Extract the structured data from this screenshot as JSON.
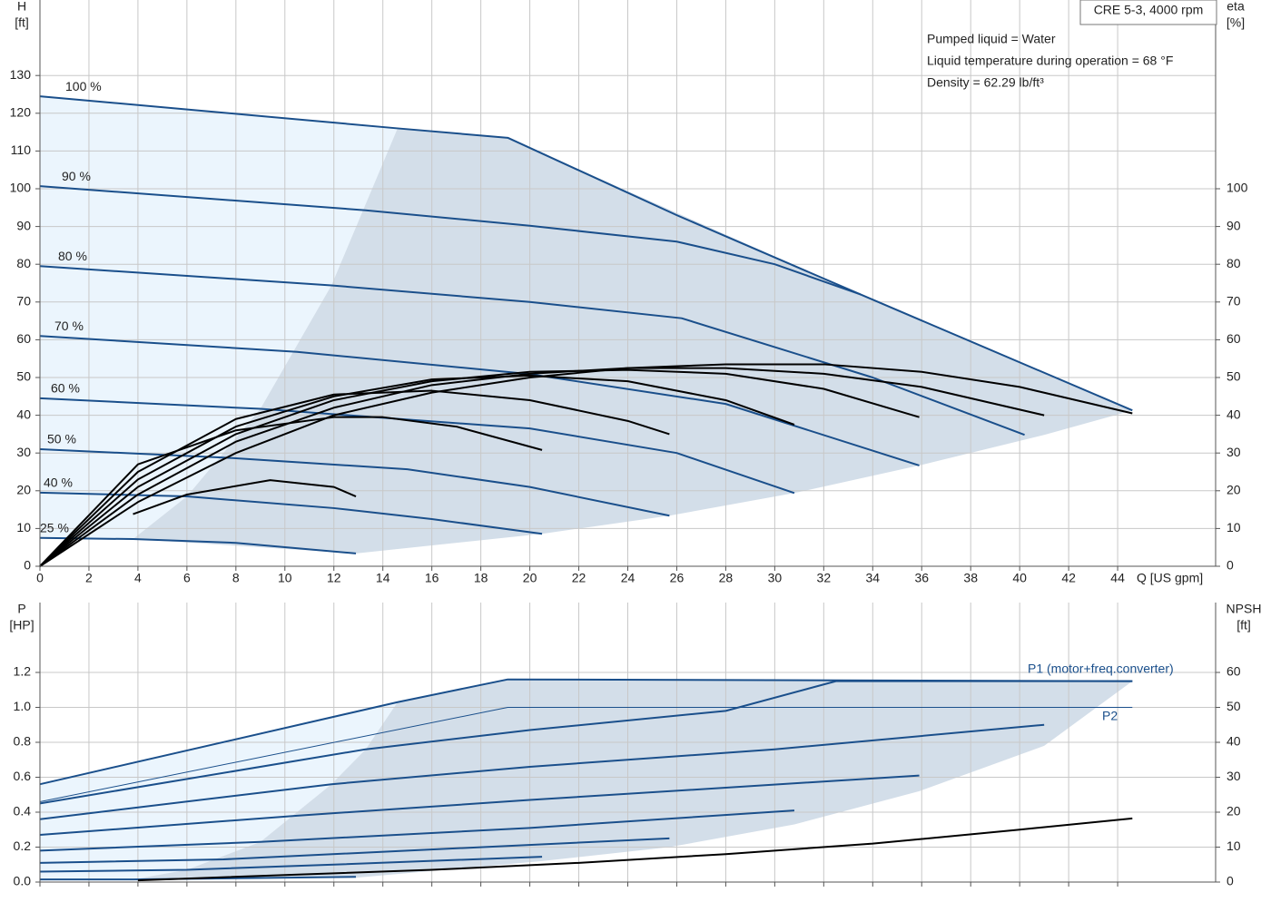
{
  "chart_data": [
    {
      "type": "line",
      "title": "CRE 5-3, 4000 rpm",
      "notes": [
        "Pumped liquid = Water",
        "Liquid temperature during operation = 68 °F",
        "Density = 62.29 lb/ft³"
      ],
      "ylabel": "H",
      "yunit": "[ft]",
      "y2label": "eta",
      "y2unit": "[%]",
      "xlabel": "Q [US gpm]",
      "xlim": [
        0,
        48
      ],
      "ylim": [
        0,
        150
      ],
      "y2lim": [
        0,
        150
      ],
      "xticks": [
        0,
        2,
        4,
        6,
        8,
        10,
        12,
        14,
        16,
        18,
        20,
        22,
        24,
        26,
        28,
        30,
        32,
        34,
        36,
        38,
        40,
        42,
        44
      ],
      "yticks": [
        0,
        10,
        20,
        30,
        40,
        50,
        60,
        70,
        80,
        90,
        100,
        110,
        120,
        130
      ],
      "y2ticks": [
        0,
        10,
        20,
        30,
        40,
        50,
        60,
        70,
        80,
        90,
        100
      ],
      "grid": true,
      "areas": [
        {
          "color": "#ebf5fd",
          "x": [
            0,
            14.6,
            11.9,
            9,
            6,
            3.8,
            0
          ],
          "values": [
            124.5,
            116,
            74.4,
            41.7,
            18.5,
            7.2,
            7.5
          ]
        },
        {
          "color": "#d3dee9",
          "x": [
            14.6,
            19.1,
            33.5,
            44.6,
            41,
            35.9,
            30.8,
            25.7,
            20.5,
            12.9,
            3.8,
            6,
            9,
            11.9
          ],
          "values": [
            116,
            113.5,
            72,
            41.3,
            34.8,
            26.7,
            19.4,
            13.4,
            8.6,
            3.4,
            7.2,
            18.5,
            41.7,
            74.4
          ]
        }
      ],
      "series": [
        {
          "name": "100 %",
          "color": "#1a4f8b",
          "width": 2,
          "x": [
            0,
            14.6,
            19.1,
            26,
            33.5,
            44.6
          ],
          "values": [
            124.5,
            116,
            113.5,
            93,
            72,
            41.3
          ]
        },
        {
          "name": "90 %",
          "color": "#1a4f8b",
          "width": 2,
          "x": [
            0,
            13.3,
            20,
            26,
            30,
            33.5
          ],
          "values": [
            100.7,
            94.3,
            90.2,
            86,
            80,
            72
          ]
        },
        {
          "name": "80 %",
          "color": "#1a4f8b",
          "width": 2,
          "x": [
            0,
            11.9,
            20,
            26.2,
            34,
            40.2
          ],
          "values": [
            79.5,
            74.4,
            70,
            65.7,
            50,
            34.8
          ]
        },
        {
          "name": "70 %",
          "color": "#1a4f8b",
          "width": 2,
          "x": [
            0,
            10.5,
            20,
            28,
            35.9
          ],
          "values": [
            61,
            56.8,
            50.9,
            43,
            26.7
          ]
        },
        {
          "name": "60 %",
          "color": "#1a4f8b",
          "width": 2,
          "x": [
            0,
            9,
            20,
            26,
            30.8
          ],
          "values": [
            44.5,
            41.7,
            36.5,
            30,
            19.4
          ]
        },
        {
          "name": "50 %",
          "color": "#1a4f8b",
          "width": 2,
          "x": [
            0,
            7.5,
            15,
            20,
            25.7
          ],
          "values": [
            31,
            28.8,
            25.7,
            21,
            13.4
          ]
        },
        {
          "name": "40 %",
          "color": "#1a4f8b",
          "width": 2,
          "x": [
            0,
            6,
            12,
            16,
            20.5
          ],
          "values": [
            19.5,
            18.5,
            15.4,
            12.5,
            8.6
          ]
        },
        {
          "name": "25 %",
          "color": "#1a4f8b",
          "width": 2,
          "x": [
            0,
            3.8,
            8,
            12.9
          ],
          "values": [
            7.5,
            7.2,
            6.2,
            3.4
          ]
        },
        {
          "axis": "y2",
          "color": "#000000",
          "width": 2,
          "x": [
            0,
            4,
            8,
            12,
            16,
            20,
            24,
            28,
            32,
            36,
            40,
            44.6
          ],
          "values": [
            0,
            17,
            30,
            40,
            46,
            50,
            52.5,
            53.5,
            53.5,
            51.5,
            47.5,
            40.5
          ]
        },
        {
          "axis": "y2",
          "color": "#000000",
          "width": 2,
          "x": [
            0,
            4,
            8,
            12,
            16,
            20,
            24,
            28,
            32,
            36,
            41
          ],
          "values": [
            0,
            19,
            33,
            42,
            48,
            51,
            52.5,
            52.5,
            51,
            47.5,
            40
          ]
        },
        {
          "axis": "y2",
          "color": "#000000",
          "width": 2,
          "x": [
            0,
            4,
            8,
            12,
            16,
            20,
            24,
            28,
            32,
            35.9
          ],
          "values": [
            0,
            21,
            35,
            44,
            49,
            51.5,
            52,
            51,
            47,
            39.5
          ]
        },
        {
          "axis": "y2",
          "color": "#000000",
          "width": 2,
          "x": [
            0,
            4,
            8,
            12,
            16,
            20,
            24,
            28,
            30.8
          ],
          "values": [
            0,
            23,
            37,
            45,
            49.5,
            50.5,
            49,
            44,
            37.5
          ]
        },
        {
          "axis": "y2",
          "color": "#000000",
          "width": 2,
          "x": [
            0,
            4,
            8,
            12,
            16,
            20,
            24,
            25.7
          ],
          "values": [
            0,
            25,
            39,
            45.5,
            46.5,
            44,
            38.5,
            35
          ]
        },
        {
          "axis": "y2",
          "color": "#000000",
          "width": 2,
          "x": [
            0,
            4,
            8,
            12,
            14,
            17,
            20.5
          ],
          "values": [
            0,
            27,
            36,
            39.5,
            39.5,
            37,
            30.8
          ]
        },
        {
          "axis": "y2",
          "color": "#000000",
          "width": 2,
          "x": [
            3.8,
            6,
            9.4,
            12,
            12.9
          ],
          "values": [
            13.8,
            19,
            22.8,
            21,
            18.5
          ]
        }
      ]
    },
    {
      "type": "line",
      "ylabel": "P",
      "yunit": "[HP]",
      "y2label": "NPSH",
      "y2unit": "[ft]",
      "annotations": [
        "P1 (motor+freq.converter)",
        "P2"
      ],
      "xlim": [
        0,
        48
      ],
      "ylim": [
        0,
        1.6
      ],
      "y2lim": [
        0,
        80
      ],
      "xticks": [
        0,
        2,
        4,
        6,
        8,
        10,
        12,
        14,
        16,
        18,
        20,
        22,
        24,
        26,
        28,
        30,
        32,
        34,
        36,
        38,
        40,
        42,
        44
      ],
      "yticks": [
        {
          "value": 0,
          "label": "0.0"
        },
        0.2,
        0.4,
        0.6,
        0.8,
        {
          "value": 1,
          "label": "1.0"
        },
        1.2
      ],
      "y2ticks": [
        0,
        10,
        20,
        30,
        40,
        50,
        60
      ],
      "grid": true,
      "areas": [
        {
          "color": "#ebf5fd",
          "x": [
            0,
            14.6,
            13.3,
            11.9,
            9,
            6,
            3.8,
            0
          ],
          "values": [
            0.56,
            1.03,
            0.76,
            0.56,
            0.23,
            0.07,
            0.015,
            0.01
          ]
        },
        {
          "color": "#d3dee9",
          "x": [
            14.6,
            19.1,
            44.6,
            41,
            35.9,
            30.8,
            25.7,
            20.5,
            12.9,
            3.8,
            6,
            9,
            11.9,
            13.3
          ],
          "values": [
            1.03,
            1.16,
            1.15,
            0.78,
            0.52,
            0.33,
            0.2,
            0.12,
            0.025,
            0.015,
            0.07,
            0.23,
            0.56,
            0.76
          ]
        }
      ],
      "series": [
        {
          "color": "#1a4f8b",
          "width": 2,
          "x": [
            0,
            14.6,
            19.1,
            44.6
          ],
          "values": [
            0.56,
            1.03,
            1.16,
            1.15
          ]
        },
        {
          "color": "#1a4f8b",
          "width": 2,
          "x": [
            0,
            13.3,
            20,
            28,
            32.5,
            44.6
          ],
          "values": [
            0.45,
            0.76,
            0.87,
            0.98,
            1.15,
            1.15
          ]
        },
        {
          "color": "#1a4f8b",
          "width": 2,
          "x": [
            0,
            11.9,
            20,
            30,
            41
          ],
          "values": [
            0.36,
            0.56,
            0.66,
            0.76,
            0.9
          ]
        },
        {
          "color": "#1a4f8b",
          "width": 2,
          "x": [
            0,
            10.5,
            20,
            35.9
          ],
          "values": [
            0.27,
            0.38,
            0.47,
            0.61
          ]
        },
        {
          "color": "#1a4f8b",
          "width": 2,
          "x": [
            0,
            9,
            20,
            30.8
          ],
          "values": [
            0.18,
            0.23,
            0.31,
            0.41
          ]
        },
        {
          "color": "#1a4f8b",
          "width": 2,
          "x": [
            0,
            7.5,
            15,
            25.7
          ],
          "values": [
            0.11,
            0.13,
            0.18,
            0.25
          ]
        },
        {
          "color": "#1a4f8b",
          "width": 2,
          "x": [
            0,
            6,
            12,
            20.5
          ],
          "values": [
            0.06,
            0.07,
            0.1,
            0.145
          ]
        },
        {
          "color": "#1a4f8b",
          "width": 2,
          "x": [
            0,
            3.8,
            12.9
          ],
          "values": [
            0.015,
            0.015,
            0.03
          ]
        },
        {
          "color": "#1a4f8b",
          "width": 1,
          "x": [
            0,
            19.1,
            44.6
          ],
          "values": [
            0.46,
            1,
            1
          ]
        },
        {
          "axis": "y2",
          "color": "#000000",
          "width": 2,
          "x": [
            4,
            10,
            16,
            22,
            28,
            34,
            40,
            44.6
          ],
          "values": [
            0.5,
            2,
            3.5,
            5.5,
            8,
            11,
            15,
            18.2
          ]
        }
      ]
    }
  ]
}
